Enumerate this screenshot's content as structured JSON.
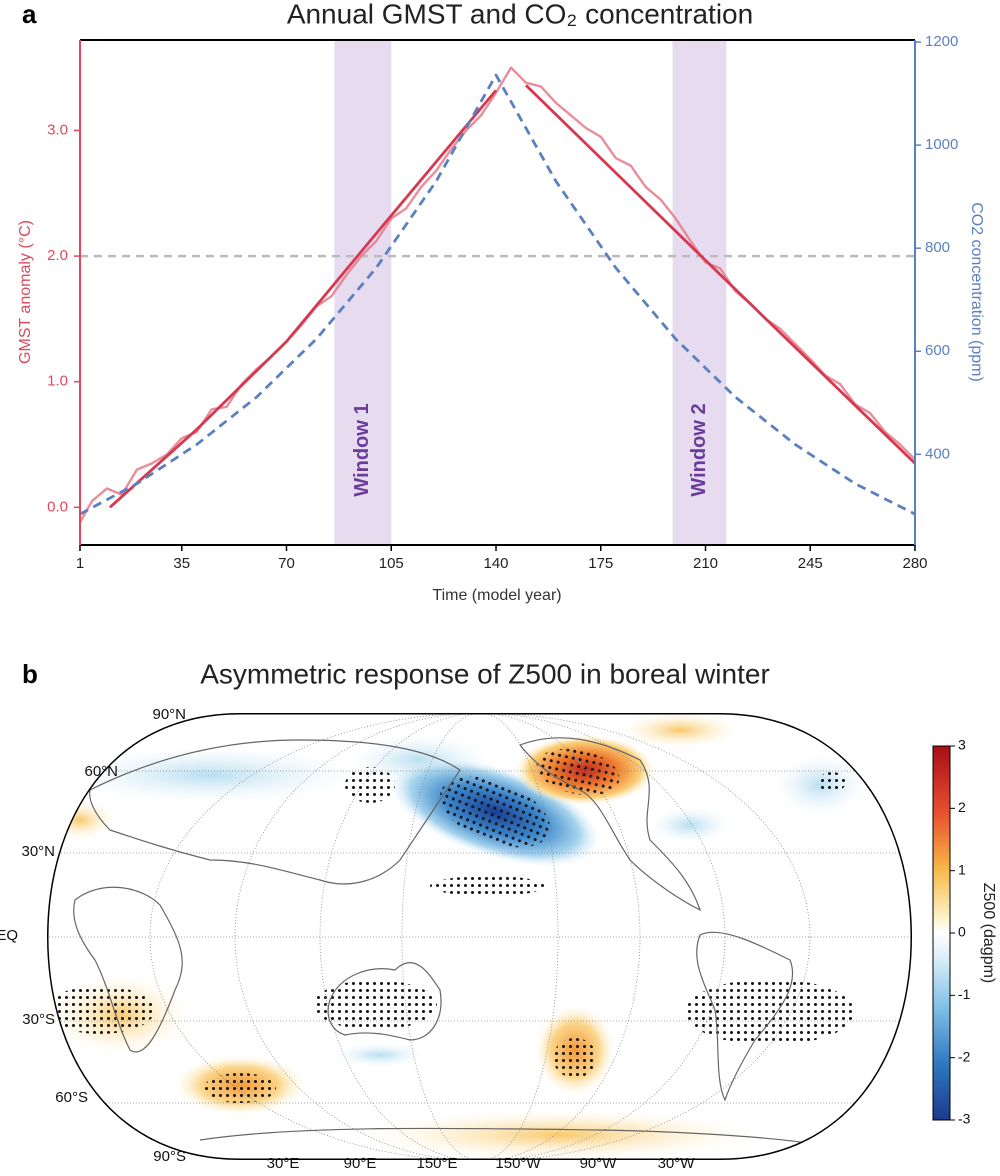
{
  "chart_data": [
    {
      "type": "line",
      "panel_label": "a",
      "title": "Annual GMST and CO₂ concentration",
      "xlabel": "Time (model year)",
      "ylabel": "GMST anomaly (°C)",
      "y2label": "CO2 concentration (ppm)",
      "xlim": [
        1,
        280
      ],
      "xticks": [
        1,
        35,
        70,
        105,
        140,
        175,
        210,
        245,
        280
      ],
      "ylim": [
        -0.3,
        3.72
      ],
      "yticks": [
        {
          "value": 0,
          "label": "0.0"
        },
        {
          "value": 1,
          "label": "1.0"
        },
        {
          "value": 2,
          "label": "2.0"
        },
        {
          "value": 3,
          "label": "3.0"
        }
      ],
      "y2lim": [
        224,
        1204
      ],
      "y2ticks": [
        400,
        600,
        800,
        1000,
        1200
      ],
      "hline": 2,
      "windows": [
        {
          "label": "Window 1",
          "start": 86,
          "end": 105
        },
        {
          "label": "Window 2",
          "start": 199,
          "end": 217
        }
      ],
      "series": [
        {
          "color": "#e8788a",
          "x": [
            1,
            5,
            10,
            15,
            20,
            25,
            30,
            35,
            40,
            45,
            50,
            55,
            60,
            65,
            70,
            75,
            80,
            85,
            90,
            95,
            100,
            105,
            110,
            115,
            120,
            125,
            130,
            135,
            140,
            145,
            150,
            155,
            160,
            165,
            170,
            175,
            180,
            185,
            190,
            195,
            200,
            205,
            210,
            215,
            220,
            225,
            230,
            235,
            240,
            245,
            250,
            255,
            260,
            265,
            270,
            275,
            280
          ],
          "values": [
            -0.12,
            0.05,
            0.15,
            0.1,
            0.3,
            0.35,
            0.42,
            0.55,
            0.6,
            0.78,
            0.8,
            0.98,
            1.1,
            1.2,
            1.32,
            1.45,
            1.6,
            1.68,
            1.85,
            2.0,
            2.12,
            2.3,
            2.38,
            2.55,
            2.68,
            2.85,
            3.0,
            3.12,
            3.3,
            3.5,
            3.38,
            3.35,
            3.22,
            3.12,
            3.02,
            2.95,
            2.78,
            2.72,
            2.55,
            2.45,
            2.3,
            2.12,
            1.95,
            1.9,
            1.72,
            1.62,
            1.5,
            1.42,
            1.3,
            1.18,
            1.05,
            0.98,
            0.82,
            0.75,
            0.6,
            0.5,
            0.38
          ]
        },
        {
          "color": "#d6394f",
          "x": [
            11,
            40,
            70,
            100,
            140,
            145,
            150,
            215,
            280
          ],
          "values": [
            0.0,
            0.62,
            1.32,
            2.18,
            3.32,
            null,
            3.36,
            1.85,
            0.35
          ]
        },
        {
          "color": "#5b80c0",
          "axis": "y2",
          "style": "dashed",
          "x": [
            1,
            20,
            40,
            60,
            80,
            100,
            120,
            140,
            160,
            180,
            200,
            220,
            240,
            260,
            280
          ],
          "values": [
            284,
            343,
            419,
            511,
            624,
            762,
            930,
            1136,
            930,
            762,
            624,
            511,
            419,
            343,
            284
          ]
        }
      ]
    },
    {
      "type": "map",
      "panel_label": "b",
      "title": "Asymmetric response of Z500 in boreal winter",
      "lat_labels": [
        "90°N",
        "60°N",
        "30°N",
        "EQ",
        "30°S",
        "60°S",
        "90°S"
      ],
      "lon_labels": [
        "30°E",
        "90°E",
        "150°E",
        "150°W",
        "90°W",
        "30°W"
      ],
      "colorbar": {
        "label": "Z500 (dagpm)",
        "lim": [
          -3,
          3
        ],
        "ticks": [
          -3,
          -2,
          -1,
          0,
          1,
          2,
          3
        ]
      }
    }
  ]
}
